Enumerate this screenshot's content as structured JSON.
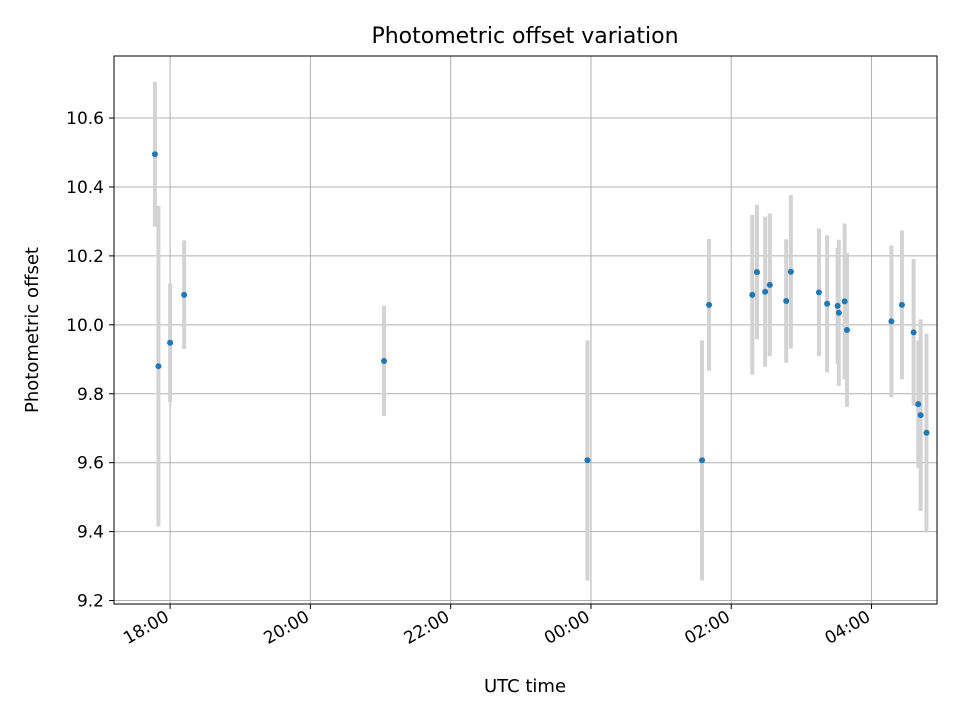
{
  "chart_data": {
    "type": "scatter",
    "title": "Photometric offset variation",
    "xlabel": "UTC time",
    "ylabel": "Photometric offset",
    "x_axis_type": "time",
    "x_tick_labels": [
      "18:00",
      "20:00",
      "22:00",
      "00:00",
      "02:00",
      "04:00"
    ],
    "xlim": [
      "17:12",
      "04:56"
    ],
    "ylim": [
      9.19,
      10.78
    ],
    "y_ticks": [
      9.2,
      9.4,
      9.6,
      9.8,
      10.0,
      10.2,
      10.4,
      10.6
    ],
    "grid": true,
    "marker_color": "#1f77b4",
    "errorbar_color": "#d3d3d3",
    "series": [
      {
        "points": [
          {
            "x": "17:47",
            "y": 10.495,
            "err_low": 10.285,
            "err_high": 10.705
          },
          {
            "x": "17:50",
            "y": 9.88,
            "err_low": 9.415,
            "err_high": 10.345
          },
          {
            "x": "18:00",
            "y": 9.948,
            "err_low": 9.775,
            "err_high": 10.12
          },
          {
            "x": "18:12",
            "y": 10.087,
            "err_low": 9.93,
            "err_high": 10.245
          },
          {
            "x": "21:03",
            "y": 9.895,
            "err_low": 9.735,
            "err_high": 10.055
          },
          {
            "x": "23:57",
            "y": 9.607,
            "err_low": 9.258,
            "err_high": 9.955
          },
          {
            "x": "01:35",
            "y": 9.607,
            "err_low": 9.258,
            "err_high": 9.955
          },
          {
            "x": "01:41",
            "y": 10.058,
            "err_low": 9.867,
            "err_high": 10.249
          },
          {
            "x": "02:18",
            "y": 10.087,
            "err_low": 9.855,
            "err_high": 10.319
          },
          {
            "x": "02:22",
            "y": 10.153,
            "err_low": 9.958,
            "err_high": 10.348
          },
          {
            "x": "02:29",
            "y": 10.096,
            "err_low": 9.878,
            "err_high": 10.314
          },
          {
            "x": "02:33",
            "y": 10.116,
            "err_low": 9.909,
            "err_high": 10.323
          },
          {
            "x": "02:47",
            "y": 10.069,
            "err_low": 9.89,
            "err_high": 10.248
          },
          {
            "x": "02:51",
            "y": 10.154,
            "err_low": 9.931,
            "err_high": 10.377
          },
          {
            "x": "03:15",
            "y": 10.094,
            "err_low": 9.909,
            "err_high": 10.279
          },
          {
            "x": "03:22",
            "y": 10.061,
            "err_low": 9.862,
            "err_high": 10.26
          },
          {
            "x": "03:31",
            "y": 10.055,
            "err_low": 9.887,
            "err_high": 10.223
          },
          {
            "x": "03:32",
            "y": 10.035,
            "err_low": 9.823,
            "err_high": 10.247
          },
          {
            "x": "03:37",
            "y": 10.068,
            "err_low": 9.842,
            "err_high": 10.294
          },
          {
            "x": "03:39",
            "y": 9.985,
            "err_low": 9.762,
            "err_high": 10.208
          },
          {
            "x": "04:17",
            "y": 10.01,
            "err_low": 9.79,
            "err_high": 10.23
          },
          {
            "x": "04:26",
            "y": 10.058,
            "err_low": 9.842,
            "err_high": 10.274
          },
          {
            "x": "04:36",
            "y": 9.978,
            "err_low": 9.765,
            "err_high": 10.191
          },
          {
            "x": "04:40",
            "y": 9.77,
            "err_low": 9.585,
            "err_high": 9.955
          },
          {
            "x": "04:42",
            "y": 9.738,
            "err_low": 9.46,
            "err_high": 10.016
          },
          {
            "x": "04:47",
            "y": 9.687,
            "err_low": 9.4,
            "err_high": 9.974
          }
        ]
      }
    ]
  }
}
